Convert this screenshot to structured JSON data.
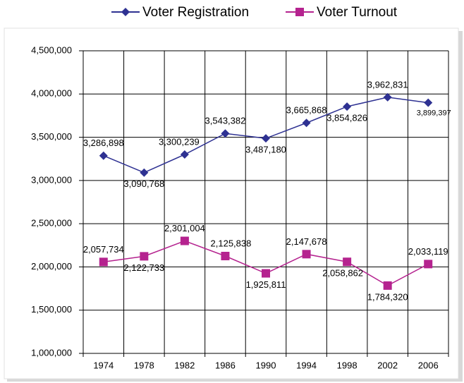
{
  "chart_data": {
    "type": "line",
    "categories": [
      "1974",
      "1978",
      "1982",
      "1986",
      "1990",
      "1994",
      "1998",
      "2002",
      "2006"
    ],
    "series": [
      {
        "name": "Voter Registration",
        "color": "#2e3192",
        "marker": "diamond",
        "values": [
          3286898,
          3090768,
          3300239,
          3543382,
          3487180,
          3665868,
          3854826,
          3962831,
          3899397
        ],
        "value_labels": [
          "3,286,898",
          "3,090,768",
          "3,300,239",
          "3,543,382",
          "3,487,180",
          "3,665,868",
          "3,854,826",
          "3,962,831",
          "3,899,397"
        ]
      },
      {
        "name": "Voter Turnout",
        "color": "#b5238f",
        "marker": "square",
        "values": [
          2057734,
          2122733,
          2301004,
          2125838,
          1925811,
          2147678,
          2058862,
          1784320,
          2033119
        ],
        "value_labels": [
          "2,057,734",
          "2,122,733",
          "2,301,004",
          "2,125,838",
          "1,925,811",
          "2,147,678",
          "2,058,862",
          "1,784,320",
          "2,033,119"
        ]
      }
    ],
    "ylim": [
      1000000,
      4500000
    ],
    "yticks": [
      {
        "value": 1000000,
        "label": "1,000,000"
      },
      {
        "value": 1500000,
        "label": "1,500,000"
      },
      {
        "value": 2000000,
        "label": "2,000,000"
      },
      {
        "value": 2500000,
        "label": "2,500,000"
      },
      {
        "value": 3000000,
        "label": "3,000,000"
      },
      {
        "value": 3500000,
        "label": "3,500,000"
      },
      {
        "value": 4000000,
        "label": "4,000,000"
      },
      {
        "value": 4500000,
        "label": "4,500,000"
      }
    ],
    "grid": true,
    "legend": "top"
  }
}
